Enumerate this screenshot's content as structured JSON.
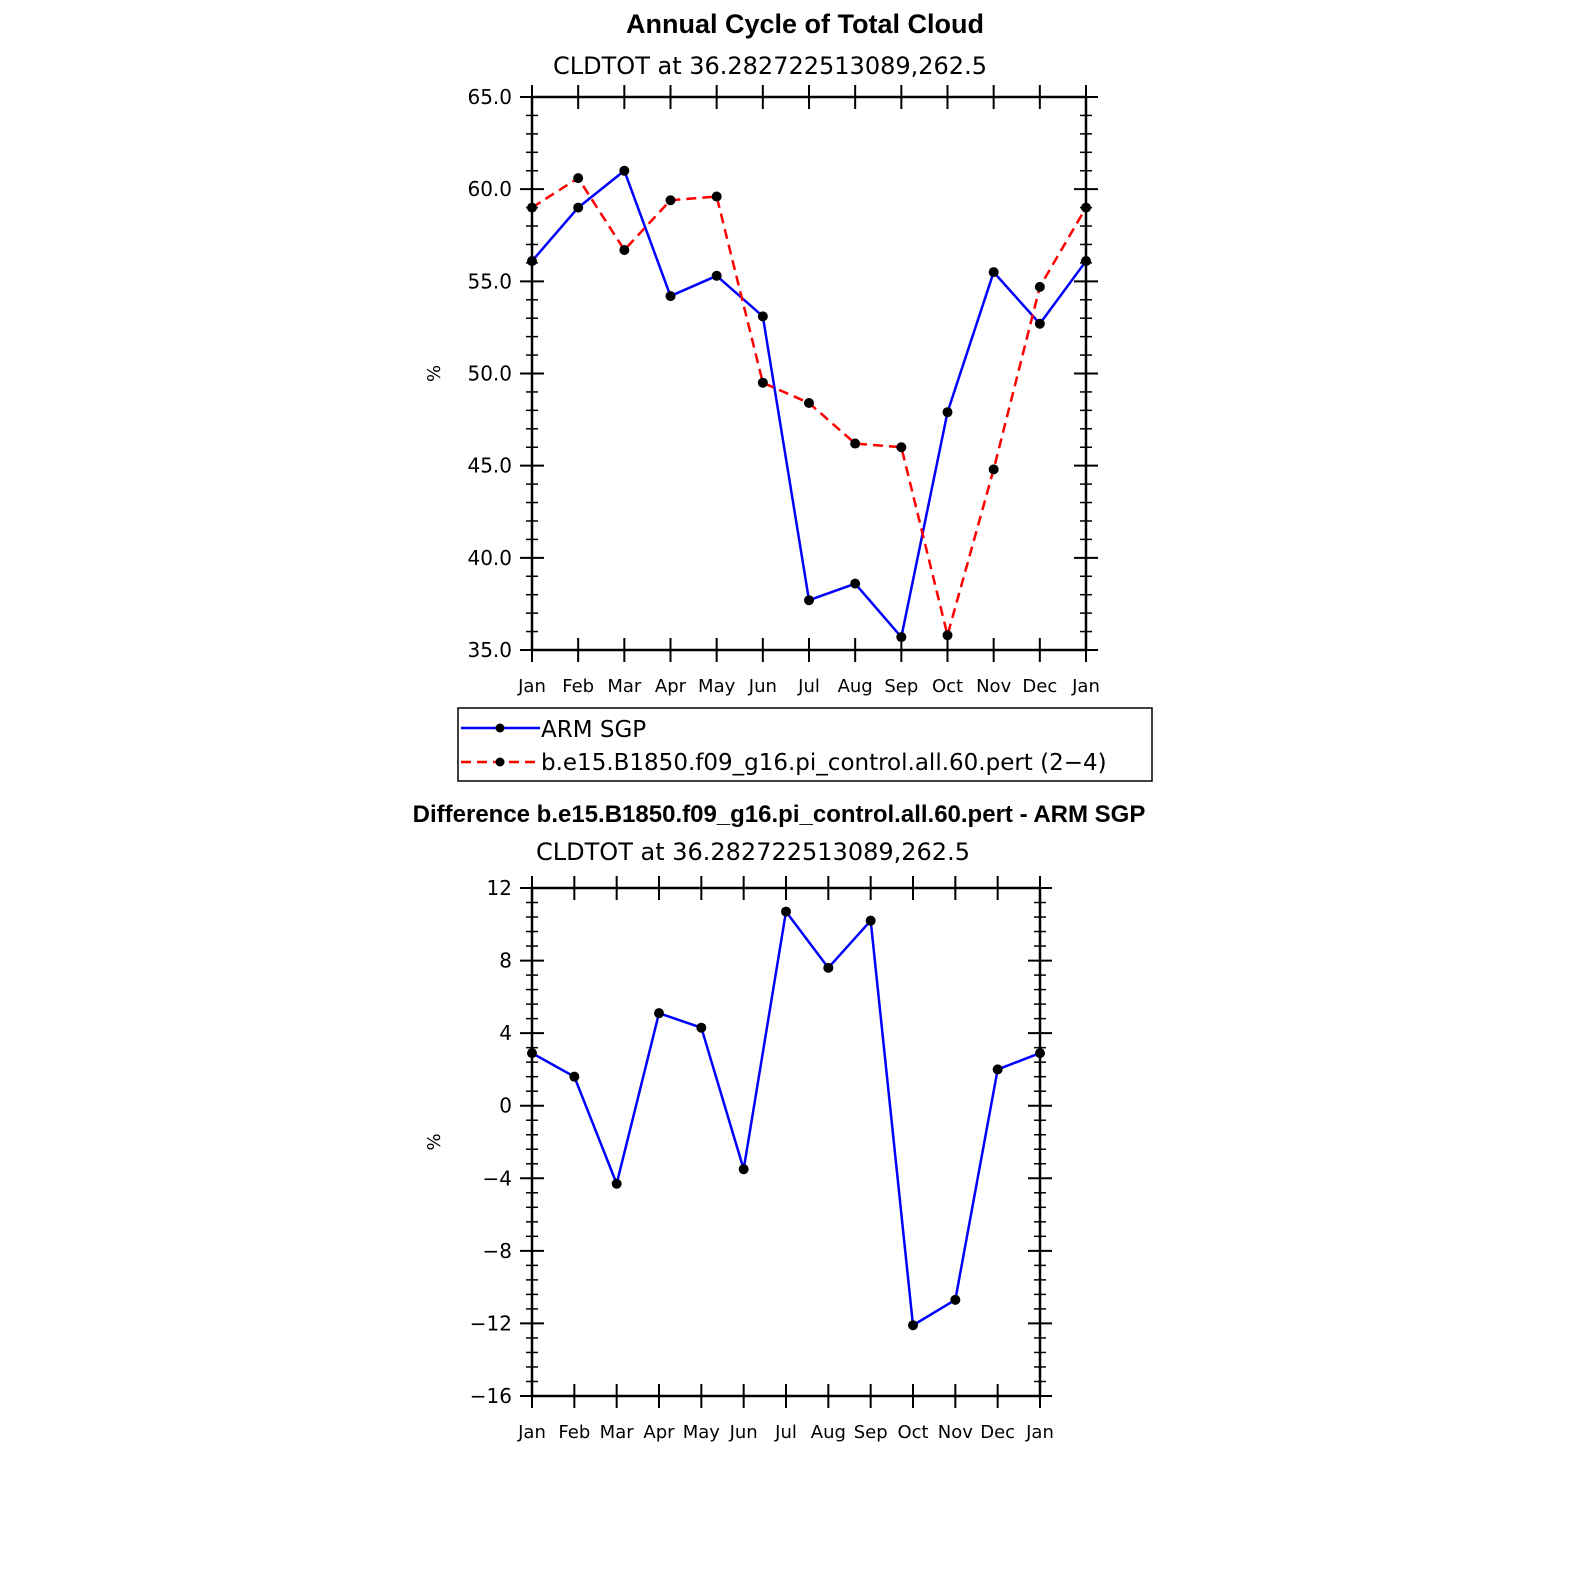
{
  "chart_data": [
    {
      "type": "line",
      "title": "Annual Cycle of Total Cloud",
      "subtitle": "CLDTOT at 36.282722513089,262.5",
      "xlabel": "",
      "ylabel": "%",
      "categories": [
        "Jan",
        "Feb",
        "Mar",
        "Apr",
        "May",
        "Jun",
        "Jul",
        "Aug",
        "Sep",
        "Oct",
        "Nov",
        "Dec",
        "Jan"
      ],
      "ylim": [
        35.0,
        65.0
      ],
      "yticks": [
        "35.0",
        "40.0",
        "45.0",
        "50.0",
        "55.0",
        "60.0",
        "65.0"
      ],
      "series": [
        {
          "name": "ARM SGP",
          "color": "#0000ff",
          "dash": "solid",
          "values": [
            56.1,
            59.0,
            61.0,
            54.2,
            55.3,
            53.1,
            37.7,
            38.6,
            35.7,
            47.9,
            55.5,
            52.7,
            56.1
          ]
        },
        {
          "name": "b.e15.B1850.f09_g16.pi_control.all.60.pert (2−4)",
          "color": "#ff0000",
          "dash": "dashed",
          "values": [
            59.0,
            60.6,
            56.7,
            59.4,
            59.6,
            49.5,
            48.4,
            46.2,
            46.0,
            35.8,
            44.8,
            54.7,
            59.0
          ]
        }
      ]
    },
    {
      "type": "line",
      "title": "Difference b.e15.B1850.f09_g16.pi_control.all.60.pert - ARM SGP",
      "subtitle": "CLDTOT at 36.282722513089,262.5",
      "xlabel": "",
      "ylabel": "%",
      "categories": [
        "Jan",
        "Feb",
        "Mar",
        "Apr",
        "May",
        "Jun",
        "Jul",
        "Aug",
        "Sep",
        "Oct",
        "Nov",
        "Dec",
        "Jan"
      ],
      "ylim": [
        -16,
        12
      ],
      "yticks": [
        "−16",
        "−12",
        "−8",
        "−4",
        "0",
        "4",
        "8",
        "12"
      ],
      "series": [
        {
          "name": "Difference",
          "color": "#0000ff",
          "dash": "solid",
          "values": [
            2.9,
            1.6,
            -4.3,
            5.1,
            4.3,
            -3.5,
            10.7,
            7.6,
            10.2,
            -12.1,
            -10.7,
            2.0,
            2.9
          ]
        }
      ]
    }
  ]
}
